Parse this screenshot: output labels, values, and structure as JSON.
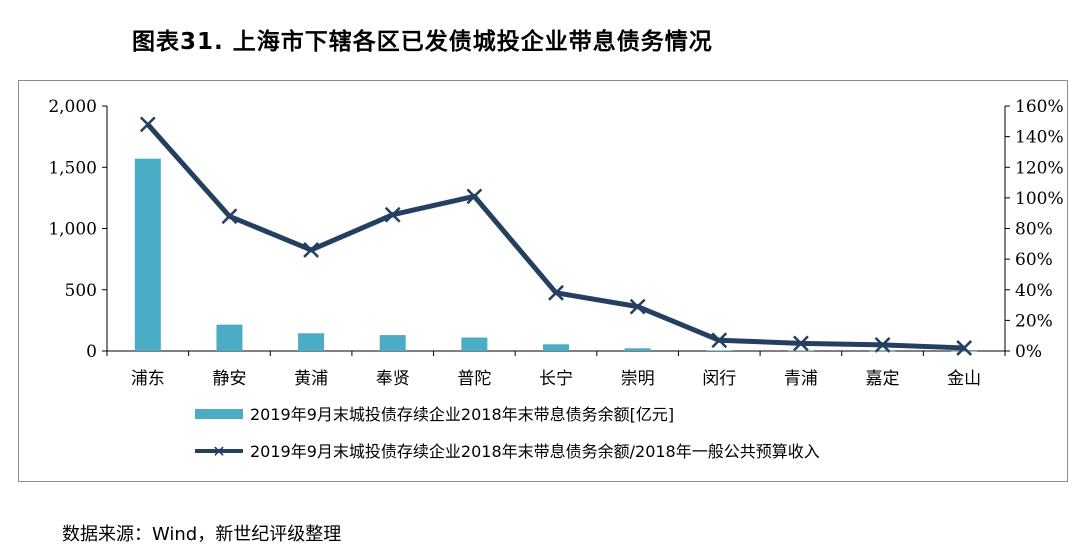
{
  "title": "图表31. 上海市下辖各区已发债城投企业带息债务情况",
  "source": "数据来源：Wind，新世纪评级整理",
  "colors": {
    "bar": "#4bacc6",
    "line": "#243f60",
    "axis": "#000000"
  },
  "chart_data": {
    "type": "bar+line",
    "categories": [
      "浦东",
      "静安",
      "黄浦",
      "奉贤",
      "普陀",
      "长宁",
      "崇明",
      "闵行",
      "青浦",
      "嘉定",
      "金山"
    ],
    "series": [
      {
        "name": "2019年9月末城投债存续企业2018年末带息债务余额[亿元]",
        "type": "bar",
        "axis": "left",
        "values": [
          1570,
          215,
          145,
          130,
          110,
          55,
          22,
          5,
          3,
          2,
          1
        ]
      },
      {
        "name": "2019年9月末城投债存续企业2018年末带息债务余额/2018年一般公共预算收入",
        "type": "line",
        "axis": "right",
        "values": [
          148,
          88,
          66,
          89,
          101,
          38,
          29,
          7,
          5,
          4,
          2
        ]
      }
    ],
    "y_left": {
      "ylim": [
        0,
        2000
      ],
      "ticks": [
        "2,000",
        "1,500",
        "1,000",
        "500",
        "0"
      ],
      "tick_values": [
        2000,
        1500,
        1000,
        500,
        0
      ]
    },
    "y_right": {
      "ylim": [
        0,
        160
      ],
      "ticks": [
        "160%",
        "140%",
        "120%",
        "100%",
        "80%",
        "60%",
        "40%",
        "20%",
        "0%"
      ],
      "tick_values": [
        160,
        140,
        120,
        100,
        80,
        60,
        40,
        20,
        0
      ]
    },
    "legend_position": "bottom",
    "grid": false
  }
}
